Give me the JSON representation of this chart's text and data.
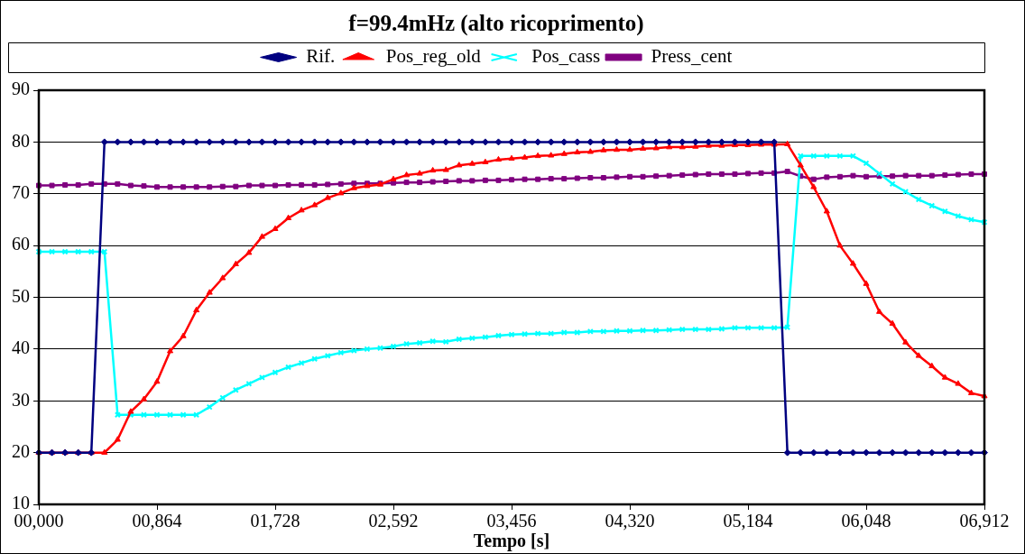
{
  "chart_data": {
    "type": "line",
    "title": "f=99.4mHz (alto ricoprimento)",
    "xlabel": "Tempo [s]",
    "categories": [
      "00,000",
      null,
      null,
      null,
      null,
      null,
      null,
      null,
      null,
      "00,864",
      null,
      null,
      null,
      null,
      null,
      null,
      null,
      null,
      "01,728",
      null,
      null,
      null,
      null,
      null,
      null,
      null,
      null,
      "02,592",
      null,
      null,
      null,
      null,
      null,
      null,
      null,
      null,
      "03,456",
      null,
      null,
      null,
      null,
      null,
      null,
      null,
      null,
      "04,320",
      null,
      null,
      null,
      null,
      null,
      null,
      null,
      null,
      "05,184",
      null,
      null,
      null,
      null,
      null,
      null,
      null,
      null,
      "06,048",
      null,
      null,
      null,
      null,
      null,
      null,
      null,
      null,
      "06,912"
    ],
    "series": [
      {
        "name": "Rif.",
        "color": "#000080",
        "marker": "diamond",
        "values": [
          20,
          20,
          20,
          20,
          20,
          80,
          80,
          80,
          80,
          80,
          80,
          80,
          80,
          80,
          80,
          80,
          80,
          80,
          80,
          80,
          80,
          80,
          80,
          80,
          80,
          80,
          80,
          80,
          80,
          80,
          80,
          80,
          80,
          80,
          80,
          80,
          80,
          80,
          80,
          80,
          80,
          80,
          80,
          80,
          80,
          80,
          80,
          80,
          80,
          80,
          80,
          80,
          80,
          80,
          80,
          80,
          80,
          20,
          20,
          20,
          20,
          20,
          20,
          20,
          20,
          20,
          20,
          20,
          20,
          20,
          20,
          20,
          20
        ]
      },
      {
        "name": "Pos_reg_old",
        "color": "#ff0000",
        "marker": "triangle",
        "values": [
          20,
          20,
          20,
          20,
          20,
          20,
          22.5,
          27.9,
          30.3,
          33.7,
          39.6,
          42.5,
          47.5,
          50.9,
          53.7,
          56.4,
          58.6,
          61.7,
          63.2,
          65.3,
          66.8,
          67.8,
          69.2,
          70.1,
          71.1,
          71.5,
          71.8,
          72.8,
          73.6,
          73.9,
          74.5,
          74.6,
          75.5,
          75.8,
          76.1,
          76.6,
          76.8,
          77.0,
          77.3,
          77.4,
          77.7,
          78.0,
          78.1,
          78.4,
          78.5,
          78.5,
          78.7,
          78.8,
          79.0,
          79.0,
          79.1,
          79.3,
          79.3,
          79.4,
          79.4,
          79.5,
          79.5,
          79.6,
          75.5,
          71.3,
          66.6,
          60.0,
          56.5,
          52.6,
          47.2,
          44.9,
          41.3,
          38.7,
          36.7,
          34.5,
          33.3,
          31.5,
          30.9
        ]
      },
      {
        "name": "Pos_cass",
        "color": "#00ffff",
        "marker": "cross",
        "values": [
          58.8,
          58.8,
          58.8,
          58.8,
          58.8,
          58.8,
          27.3,
          27.3,
          27.3,
          27.3,
          27.3,
          27.3,
          27.3,
          28.8,
          30.6,
          32.1,
          33.3,
          34.5,
          35.5,
          36.5,
          37.3,
          38.1,
          38.7,
          39.3,
          39.7,
          40.0,
          40.2,
          40.5,
          41.0,
          41.2,
          41.5,
          41.4,
          41.9,
          42.1,
          42.3,
          42.6,
          42.8,
          42.9,
          43.0,
          43.0,
          43.2,
          43.2,
          43.4,
          43.4,
          43.5,
          43.5,
          43.6,
          43.6,
          43.7,
          43.8,
          43.8,
          43.8,
          43.9,
          44.1,
          44.1,
          44.1,
          44.1,
          44.2,
          77.3,
          77.3,
          77.3,
          77.3,
          77.3,
          75.9,
          73.9,
          71.9,
          70.4,
          68.9,
          67.7,
          66.6,
          65.7,
          65.0,
          64.5
        ]
      },
      {
        "name": "Press_cent",
        "color": "#800080",
        "marker": "square",
        "values": [
          71.6,
          71.6,
          71.7,
          71.7,
          71.9,
          71.9,
          71.9,
          71.6,
          71.5,
          71.3,
          71.3,
          71.3,
          71.3,
          71.3,
          71.4,
          71.4,
          71.6,
          71.6,
          71.6,
          71.7,
          71.7,
          71.7,
          71.8,
          71.9,
          72.0,
          72.0,
          72.0,
          72.1,
          72.2,
          72.2,
          72.3,
          72.4,
          72.5,
          72.5,
          72.6,
          72.6,
          72.7,
          72.8,
          72.8,
          72.9,
          72.9,
          73.0,
          73.1,
          73.1,
          73.2,
          73.3,
          73.3,
          73.4,
          73.5,
          73.6,
          73.7,
          73.8,
          73.8,
          73.8,
          73.9,
          74.0,
          74.0,
          74.3,
          73.4,
          72.8,
          73.2,
          73.3,
          73.5,
          73.3,
          73.4,
          73.4,
          73.5,
          73.5,
          73.5,
          73.6,
          73.7,
          73.8,
          73.8
        ]
      }
    ],
    "ylim": [
      10,
      90
    ],
    "yticks": [
      10,
      20,
      30,
      40,
      50,
      60,
      70,
      80,
      90
    ],
    "grid": "y",
    "legend": "top",
    "line_style": "solid"
  }
}
